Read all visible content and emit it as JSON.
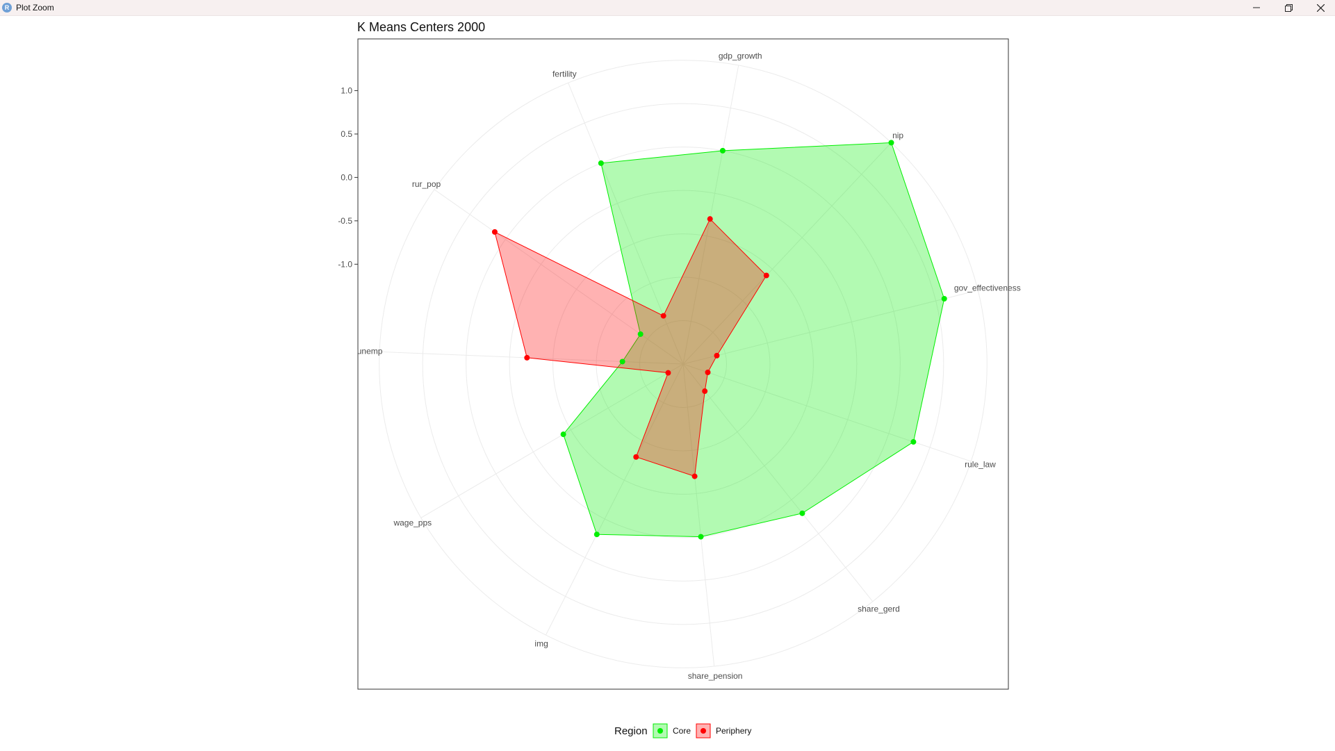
{
  "window": {
    "title": "Plot Zoom",
    "icon_letter": "R",
    "app_icon": "r-logo-icon",
    "controls": [
      "minimize-icon",
      "restore-icon",
      "close-icon"
    ]
  },
  "chart_data": {
    "type": "radar",
    "title": "K Means Centers 2000",
    "axes": [
      "gdp_growth",
      "nip",
      "gov_effectiveness",
      "rule_law",
      "share_gerd",
      "share_pension",
      "img",
      "wage_pps",
      "unemp",
      "rur_pop",
      "fertility"
    ],
    "rlim": [
      -2.15,
      1.9
    ],
    "ticks": [
      1.0,
      0.5,
      0.0,
      -0.5,
      -1.0
    ],
    "tick_labels": [
      "1.0",
      "0.5",
      "0.0",
      "-0.5",
      "-1.0"
    ],
    "grid_circles": [
      -1.65,
      -1.15,
      -0.65,
      -0.15,
      0.35,
      0.85,
      1.35
    ],
    "grid": true,
    "legend": {
      "title": "Region",
      "position": "bottom"
    },
    "series": [
      {
        "name": "Core",
        "color": "#00ee00",
        "values": [
          0.35,
          1.35,
          0.95,
          0.65,
          0.05,
          -0.15,
          0.05,
          -0.55,
          -1.45,
          -1.55,
          0.35
        ]
      },
      {
        "name": "Periphery",
        "color": "#ff0000",
        "values": [
          -0.45,
          -0.75,
          -1.75,
          -1.85,
          -1.75,
          -0.85,
          -0.95,
          -1.95,
          -0.35,
          0.5,
          -1.55
        ]
      }
    ]
  }
}
